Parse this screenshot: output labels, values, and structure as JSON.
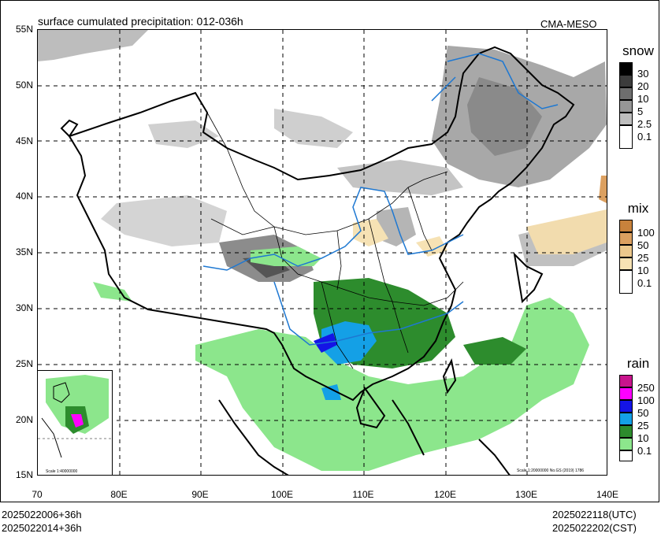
{
  "title": "surface cumulated precipitation: 012-036h",
  "agency": "CMA-MESO",
  "lat_labels": [
    "55N",
    "50N",
    "45N",
    "40N",
    "35N",
    "30N",
    "25N",
    "20N",
    "15N"
  ],
  "lon_labels": [
    "70",
    "80E",
    "90E",
    "100E",
    "110E",
    "120E",
    "130E",
    "140E"
  ],
  "footer": {
    "init_utc": "2025022006+36h",
    "init_cst": "2025022014+36h",
    "valid_utc": "2025022118(UTC)",
    "valid_cst": "2025022202(CST)"
  },
  "legends": [
    {
      "title": "snow",
      "labels": [
        "30",
        "20",
        "10",
        "5",
        "2.5",
        "0.1"
      ],
      "colors": [
        "#000000",
        "#3c3c3c",
        "#6e6e6e",
        "#969696",
        "#bebebe",
        "#ffffff"
      ]
    },
    {
      "title": "mix",
      "labels": [
        "100",
        "50",
        "25",
        "10",
        "0.1"
      ],
      "colors": [
        "#c8823c",
        "#dca060",
        "#ecc88c",
        "#f6e2b4",
        "#ffffff"
      ]
    },
    {
      "title": "rain",
      "labels": [
        "250",
        "100",
        "50",
        "25",
        "10",
        "0.1"
      ],
      "colors": [
        "#c8148c",
        "#ff00ff",
        "#1414e6",
        "#14a0e6",
        "#2d8c2d",
        "#8ce68c"
      ]
    }
  ],
  "inset_scale": "Scale 1:40000000",
  "map_scale": "Scale 1:20000000 No.GS (2019) 1786"
}
